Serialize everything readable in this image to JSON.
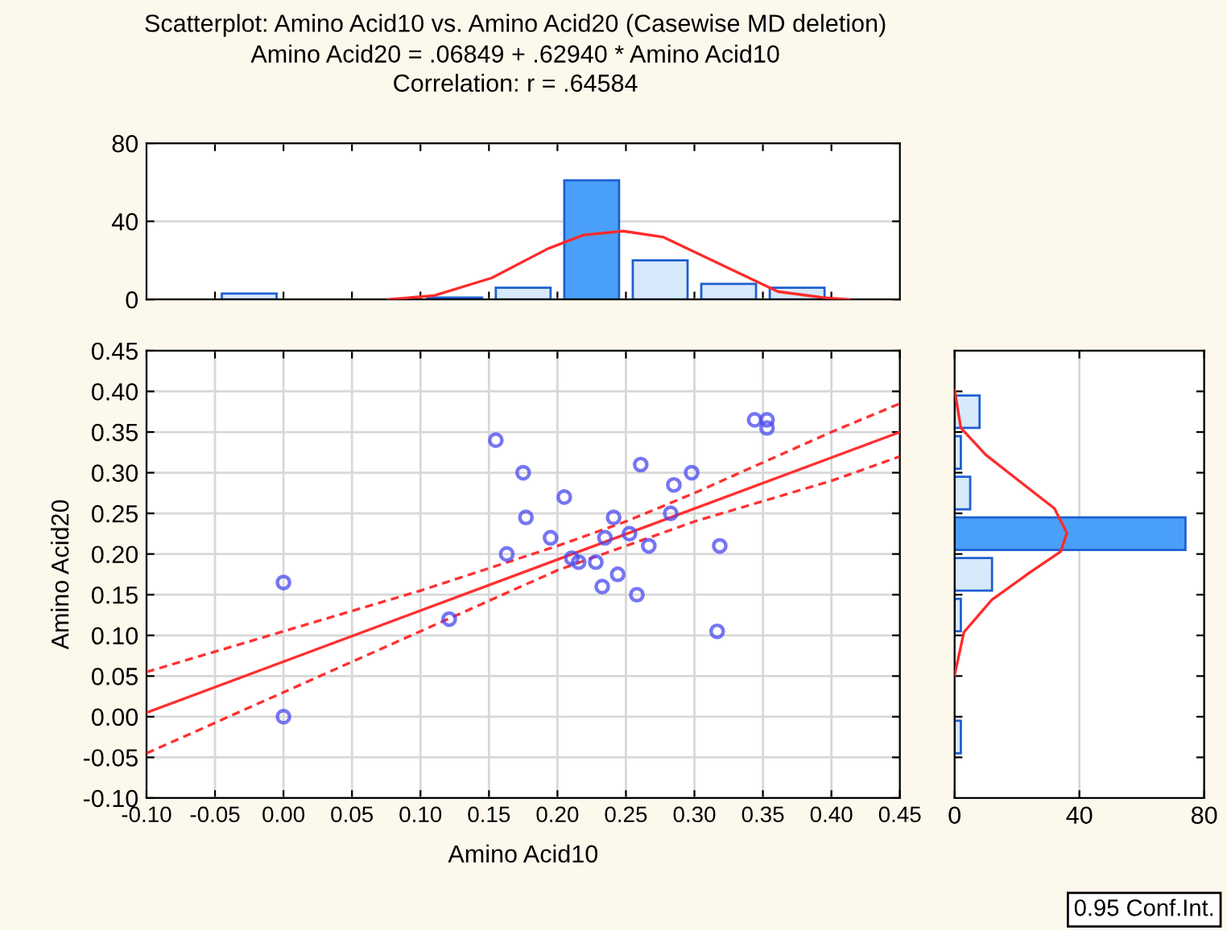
{
  "chart_data": [
    {
      "type": "histogram",
      "title": "Scatterplot: Amino Acid10 vs. Amino Acid20 (Casewise MD deletion)",
      "subtitle": "Amino Acid20 = .06849 + .62940 * Amino Acid10\nCorrelation: r = .64584",
      "bins": [
        -0.05,
        0,
        0.05,
        0.1,
        0.15,
        0.2,
        0.25,
        0.3,
        0.35,
        0.4
      ],
      "values": [
        3,
        0,
        0,
        1,
        6,
        61,
        20,
        8,
        6
      ],
      "colors": [
        "#d8e9fc",
        "#d8e9fc",
        "#d8e9fc",
        "#d8e9fc",
        "#d8e9fc",
        "#4a9ff8",
        "#d8e9fc",
        "#d8e9fc",
        "#d8e9fc"
      ],
      "series": [
        {
          "type": "line",
          "color": "#ff2a2a",
          "x": [
            0.0765,
            0.11,
            0.152,
            0.193,
            0.219,
            0.248,
            0.277,
            0.319,
            0.361,
            0.394,
            0.413
          ],
          "values": [
            0,
            2,
            11,
            26,
            33,
            35,
            32,
            18,
            4,
            1,
            0
          ],
          "marker": "none"
        }
      ],
      "xlim": [
        -0.1,
        0.45
      ],
      "xticks": [
        {
          "value": -0.05,
          "label": null
        },
        {
          "value": 0,
          "label": null
        },
        {
          "value": 0.05,
          "label": null
        },
        {
          "value": 0.1,
          "label": null
        },
        {
          "value": 0.15,
          "label": null
        },
        {
          "value": 0.2,
          "label": null
        },
        {
          "value": 0.25,
          "label": null
        },
        {
          "value": 0.3,
          "label": null
        },
        {
          "value": 0.35,
          "label": null
        },
        {
          "value": 0.4,
          "label": null
        }
      ],
      "ylim": [
        0,
        80
      ],
      "yticks": [
        0,
        40,
        80
      ],
      "grid": "y",
      "tick_labels": "y",
      "legend": false
    },
    {
      "type": "scatter",
      "xlabel": "Amino Acid10",
      "ylabel": "Amino Acid20",
      "marker": "circle",
      "legend": false,
      "grid": true,
      "annotations": [
        "0.95 Conf.Int."
      ],
      "series": [
        {
          "type": "scatter",
          "color": "#4848f0",
          "x": [
            0.0,
            0.0,
            0.121,
            0.155,
            0.163,
            0.175,
            0.177,
            0.195,
            0.205,
            0.2105,
            0.2155,
            0.228,
            0.2327,
            0.2347,
            0.241,
            0.244,
            0.2526,
            0.258,
            0.2608,
            0.2667,
            0.2827,
            0.285,
            0.298,
            0.3166,
            0.3185,
            0.344,
            0.353,
            0.353
          ],
          "values": [
            0.165,
            0.0,
            0.12,
            0.34,
            0.2,
            0.3,
            0.245,
            0.22,
            0.27,
            0.195,
            0.19,
            0.19,
            0.16,
            0.22,
            0.245,
            0.175,
            0.225,
            0.15,
            0.31,
            0.21,
            0.25,
            0.285,
            0.3,
            0.105,
            0.21,
            0.365,
            0.365,
            0.355
          ]
        },
        {
          "type": "line",
          "color": "#ff3030",
          "line_style": "solid",
          "marker": "none",
          "x": [
            -0.1,
            0.45
          ],
          "values": [
            0.005,
            0.35
          ]
        },
        {
          "type": "line",
          "color": "#ff3030",
          "line_style": "dashed",
          "x": [
            -0.1,
            0,
            0.1,
            0.2,
            0.25,
            0.3,
            0.4,
            0.45
          ],
          "marker": "none",
          "values": [
            0.055,
            0.105,
            0.155,
            0.21,
            0.24,
            0.275,
            0.35,
            0.385
          ]
        },
        {
          "type": "line",
          "color": "#ff3030",
          "line_style": "dashed",
          "x": [
            -0.1,
            0,
            0.1,
            0.2,
            0.25,
            0.3,
            0.4,
            0.45
          ],
          "marker": "none",
          "values": [
            -0.045,
            0.03,
            0.105,
            0.18,
            0.21,
            0.24,
            0.29,
            0.32
          ]
        }
      ],
      "xlim": [
        -0.1,
        0.45
      ],
      "xticks": [
        {
          "value": -0.1,
          "label": "-0.10"
        },
        {
          "value": -0.05,
          "label": "-0.05"
        },
        {
          "value": 0,
          "label": "0.00"
        },
        {
          "value": 0.05,
          "label": "0.05"
        },
        {
          "value": 0.1,
          "label": "0.10"
        },
        {
          "value": 0.15,
          "label": "0.15"
        },
        {
          "value": 0.2,
          "label": "0.20"
        },
        {
          "value": 0.25,
          "label": "0.25"
        },
        {
          "value": 0.3,
          "label": "0.30"
        },
        {
          "value": 0.35,
          "label": "0.35"
        },
        {
          "value": 0.4,
          "label": "0.40"
        },
        {
          "value": 0.45,
          "label": "0.45"
        }
      ],
      "ylim": [
        -0.1,
        0.45
      ],
      "yticks": [
        {
          "value": -0.1,
          "label": "-0.10"
        },
        {
          "value": -0.05,
          "label": "-0.05"
        },
        {
          "value": 0,
          "label": "0.00"
        },
        {
          "value": 0.05,
          "label": "0.05"
        },
        {
          "value": 0.1,
          "label": "0.10"
        },
        {
          "value": 0.15,
          "label": "0.15"
        },
        {
          "value": 0.2,
          "label": "0.20"
        },
        {
          "value": 0.25,
          "label": "0.25"
        },
        {
          "value": 0.3,
          "label": "0.30"
        },
        {
          "value": 0.35,
          "label": "0.35"
        },
        {
          "value": 0.4,
          "label": "0.40"
        },
        {
          "value": 0.45,
          "label": "0.45"
        }
      ]
    },
    {
      "type": "histogram",
      "orientation": "horizontal",
      "bins": [
        -0.05,
        0,
        0.05,
        0.1,
        0.15,
        0.2,
        0.25,
        0.3,
        0.35,
        0.4
      ],
      "values": [
        2,
        0,
        0,
        2,
        12,
        74,
        5,
        2,
        8
      ],
      "colors": [
        "#d8e9fc",
        "#d8e9fc",
        "#d8e9fc",
        "#d8e9fc",
        "#d8e9fc",
        "#4a9ff8",
        "#d8e9fc",
        "#d8e9fc",
        "#d8e9fc"
      ],
      "series": [
        {
          "type": "line",
          "color": "#ff2a2a",
          "x": [
            0.402,
            0.355,
            0.322,
            0.289,
            0.256,
            0.226,
            0.203,
            0.177,
            0.144,
            0.104,
            0.051
          ],
          "values": [
            0,
            2,
            10,
            21,
            32,
            36,
            34,
            24,
            12,
            3,
            0
          ],
          "marker": "none"
        }
      ],
      "ylim": [
        -0.1,
        0.45
      ],
      "yticks": [
        {
          "value": -0.05,
          "label": null
        },
        {
          "value": 0,
          "label": null
        },
        {
          "value": 0.05,
          "label": null
        },
        {
          "value": 0.1,
          "label": null
        },
        {
          "value": 0.15,
          "label": null
        },
        {
          "value": 0.2,
          "label": null
        },
        {
          "value": 0.25,
          "label": null
        },
        {
          "value": 0.3,
          "label": null
        },
        {
          "value": 0.35,
          "label": null
        },
        {
          "value": 0.4,
          "label": null
        }
      ],
      "xlim": [
        0,
        80
      ],
      "xticks": [
        0,
        40,
        80
      ],
      "grid": "x",
      "tick_labels": "x",
      "legend": false
    }
  ]
}
